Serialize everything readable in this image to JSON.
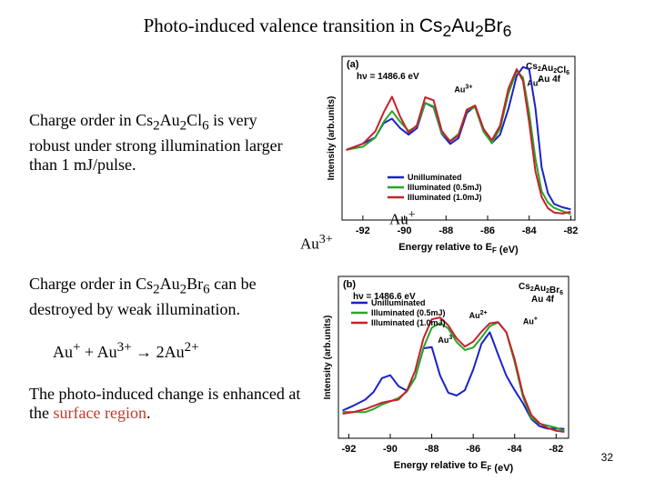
{
  "slide": {
    "title_pre": "Photo-induced valence transition in ",
    "title_formula": "Cs2Au2Br6",
    "text1_a": "Charge order in ",
    "text1_formula": "Cs2Au2Cl6",
    "text1_b": " is very robust under strong illumination larger than 1 mJ/pulse.",
    "text2_a": "Charge order in ",
    "text2_formula": "Cs2Au2Br6",
    "text2_b": " can be destroyed by weak illumination.",
    "equation": "Au+ + Au3+ → 2Au2+",
    "text4_a": "The photo-induced change is enhanced at the ",
    "text4_highlight": "surface region",
    "text4_b": ".",
    "label_au3": "Au3+",
    "label_aup": "Au+",
    "page_number": "32",
    "highlight_color": "#c0392b"
  },
  "chart_data": [
    {
      "type": "line",
      "panel": "(a)",
      "photon": "hν = 1486.6 eV",
      "compound": "Cs2Au2Cl6",
      "level": "Au 4f",
      "xlabel": "Energy relative to EF (eV)",
      "ylabel": "Intensity (arb.units)",
      "x_ticks": [
        "-92",
        "-90",
        "-88",
        "-86",
        "-84",
        "-82"
      ],
      "xlim": [
        -93,
        -81.8
      ],
      "ylim": [
        0,
        1.05
      ],
      "peak_labels": [
        {
          "text": "Au3+",
          "x": -87.6,
          "y": 0.82
        },
        {
          "text": "Au+",
          "x": -84.1,
          "y": 0.86
        }
      ],
      "legend": [
        "Unilluminated",
        "Illuminated (0.5mJ)",
        "Illuminated (1.0mJ)"
      ],
      "series": [
        {
          "name": "Unilluminated",
          "color": "#1a22c8",
          "x": [
            -92.8,
            -92,
            -91.4,
            -91,
            -90.6,
            -90.2,
            -89.8,
            -89.4,
            -89,
            -88.6,
            -88.2,
            -87.8,
            -87.4,
            -87,
            -86.6,
            -86.2,
            -85.8,
            -85.4,
            -85,
            -84.6,
            -84.3,
            -84,
            -83.7,
            -83.4,
            -83.1,
            -82.8,
            -82.4,
            -82
          ],
          "y": [
            0.45,
            0.48,
            0.52,
            0.62,
            0.66,
            0.6,
            0.55,
            0.58,
            0.74,
            0.72,
            0.56,
            0.5,
            0.53,
            0.68,
            0.72,
            0.58,
            0.5,
            0.56,
            0.72,
            0.92,
            0.97,
            0.96,
            0.72,
            0.35,
            0.18,
            0.1,
            0.07,
            0.06
          ]
        },
        {
          "name": "Illuminated (0.5mJ)",
          "color": "#27a62a",
          "x": [
            -92.8,
            -92,
            -91.4,
            -91,
            -90.6,
            -90.2,
            -89.8,
            -89.4,
            -89,
            -88.6,
            -88.2,
            -87.8,
            -87.4,
            -87,
            -86.6,
            -86.2,
            -85.8,
            -85.4,
            -85,
            -84.6,
            -84.3,
            -84,
            -83.7,
            -83.4,
            -83.1,
            -82.8,
            -82.4,
            -82
          ],
          "y": [
            0.44,
            0.47,
            0.54,
            0.64,
            0.7,
            0.62,
            0.56,
            0.6,
            0.76,
            0.74,
            0.56,
            0.5,
            0.54,
            0.7,
            0.73,
            0.58,
            0.5,
            0.58,
            0.8,
            0.95,
            0.92,
            0.7,
            0.4,
            0.18,
            0.1,
            0.07,
            0.06,
            0.05
          ]
        },
        {
          "name": "Illuminated (1.0mJ)",
          "color": "#c8202a",
          "x": [
            -92.8,
            -92,
            -91.4,
            -91,
            -90.6,
            -90.2,
            -89.8,
            -89.4,
            -89,
            -88.6,
            -88.2,
            -87.8,
            -87.4,
            -87,
            -86.6,
            -86.2,
            -85.8,
            -85.4,
            -85,
            -84.6,
            -84.3,
            -84,
            -83.7,
            -83.4,
            -83.1,
            -82.8,
            -82.4,
            -82
          ],
          "y": [
            0.46,
            0.5,
            0.57,
            0.68,
            0.78,
            0.66,
            0.57,
            0.62,
            0.79,
            0.76,
            0.56,
            0.5,
            0.55,
            0.72,
            0.74,
            0.58,
            0.5,
            0.6,
            0.85,
            0.98,
            0.9,
            0.62,
            0.3,
            0.14,
            0.08,
            0.06,
            0.05,
            0.05
          ]
        }
      ]
    },
    {
      "type": "line",
      "panel": "(b)",
      "photon": "hν = 1486.6 eV",
      "compound": "Cs2Au2Br6",
      "level": "Au 4f",
      "xlabel": "Energy relative to EF (eV)",
      "ylabel": "Intensity (arb.units)",
      "x_ticks": [
        "-92",
        "-90",
        "-88",
        "-86",
        "-84",
        "-82"
      ],
      "xlim": [
        -92.5,
        -81.4
      ],
      "ylim": [
        0,
        1.05
      ],
      "peak_labels": [
        {
          "text": "Au2+",
          "x": -86.2,
          "y": 0.78
        },
        {
          "text": "Au+",
          "x": -83.6,
          "y": 0.74
        },
        {
          "text": "Au3+",
          "x": -87.7,
          "y": 0.62
        }
      ],
      "legend": [
        "Unilluminated",
        "Illuminated (0.5mJ)",
        "Illuminated (1.0mJ)"
      ],
      "series": [
        {
          "name": "Unilluminated",
          "color": "#1a22c8",
          "x": [
            -92.3,
            -91.8,
            -91.2,
            -90.8,
            -90.4,
            -90,
            -89.6,
            -89.2,
            -88.8,
            -88.4,
            -88,
            -87.6,
            -87.2,
            -86.8,
            -86.4,
            -86,
            -85.6,
            -85.2,
            -84.8,
            -84.4,
            -84,
            -83.6,
            -83.2,
            -82.8,
            -82.4,
            -82,
            -81.6
          ],
          "y": [
            0.18,
            0.2,
            0.24,
            0.3,
            0.4,
            0.42,
            0.34,
            0.3,
            0.38,
            0.58,
            0.6,
            0.42,
            0.3,
            0.27,
            0.3,
            0.44,
            0.62,
            0.7,
            0.55,
            0.4,
            0.3,
            0.22,
            0.13,
            0.09,
            0.07,
            0.06,
            0.05
          ]
        },
        {
          "name": "Illuminated (0.5mJ)",
          "color": "#27a62a",
          "x": [
            -92.3,
            -91.8,
            -91.2,
            -90.8,
            -90.4,
            -90,
            -89.6,
            -89.2,
            -88.8,
            -88.4,
            -88,
            -87.6,
            -87.2,
            -86.8,
            -86.4,
            -86,
            -85.6,
            -85.2,
            -84.8,
            -84.4,
            -84,
            -83.6,
            -83.2,
            -82.8,
            -82.4,
            -82,
            -81.6
          ],
          "y": [
            0.16,
            0.17,
            0.18,
            0.2,
            0.22,
            0.23,
            0.25,
            0.3,
            0.4,
            0.6,
            0.72,
            0.74,
            0.7,
            0.62,
            0.58,
            0.6,
            0.66,
            0.72,
            0.74,
            0.68,
            0.5,
            0.28,
            0.14,
            0.09,
            0.07,
            0.06,
            0.05
          ]
        },
        {
          "name": "Illuminated (1.0mJ)",
          "color": "#c8202a",
          "x": [
            -92.3,
            -91.8,
            -91.2,
            -90.8,
            -90.4,
            -90,
            -89.6,
            -89.2,
            -88.8,
            -88.4,
            -88,
            -87.6,
            -87.2,
            -86.8,
            -86.4,
            -86,
            -85.6,
            -85.2,
            -84.8,
            -84.4,
            -84,
            -83.6,
            -83.2,
            -82.8,
            -82.4,
            -82,
            -81.6
          ],
          "y": [
            0.17,
            0.18,
            0.19,
            0.2,
            0.22,
            0.24,
            0.26,
            0.32,
            0.44,
            0.64,
            0.76,
            0.78,
            0.74,
            0.66,
            0.6,
            0.62,
            0.68,
            0.74,
            0.76,
            0.7,
            0.52,
            0.28,
            0.14,
            0.09,
            0.07,
            0.06,
            0.05
          ]
        }
      ]
    }
  ]
}
